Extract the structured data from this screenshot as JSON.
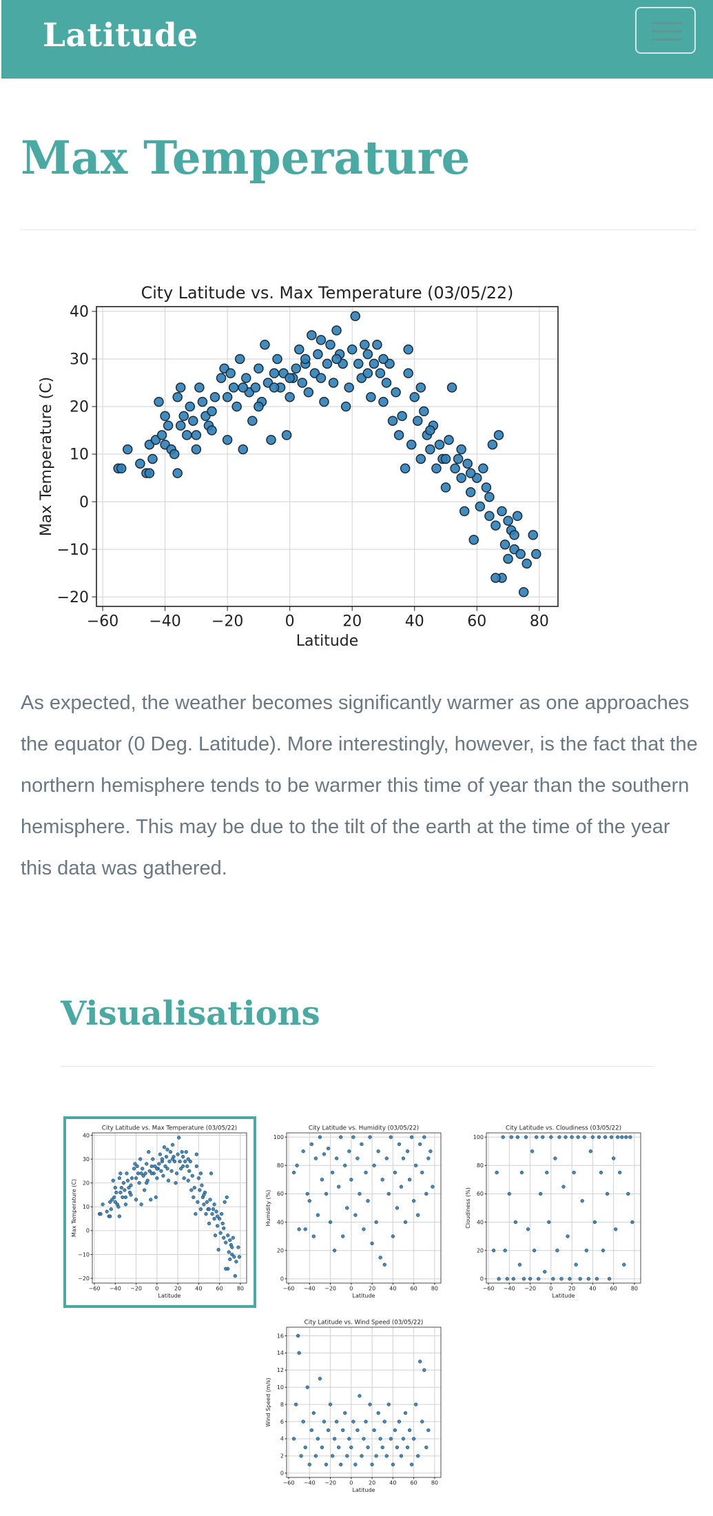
{
  "nav": {
    "brand": "Latitude",
    "menu_icon": "hamburger-icon"
  },
  "page": {
    "title": "Max Temperature",
    "description": "As expected, the weather becomes significantly warmer as one approaches the equator (0 Deg. Latitude). More interestingly, however, is the fact that the northern hemisphere tends to be warmer this time of year than the southern hemisphere. This may be due to the tilt of the earth at the time of the year this data was gathered."
  },
  "visualisations": {
    "title": "Visualisations"
  },
  "colors": {
    "accent": "#4aa9a3",
    "text_muted": "#6a7882",
    "point": "#2f7fb8"
  },
  "chart_data": [
    {
      "id": "max_temp",
      "type": "scatter",
      "title": "City Latitude vs. Max Temperature (03/05/22)",
      "xlabel": "Latitude",
      "ylabel": "Max Temperature (C)",
      "xlim": [
        -62,
        86
      ],
      "ylim": [
        -22,
        41
      ],
      "xticks": [
        -60,
        -40,
        -20,
        0,
        20,
        40,
        60,
        80
      ],
      "yticks": [
        -20,
        -10,
        0,
        10,
        20,
        30,
        40
      ],
      "grid": true,
      "points": [
        [
          -55,
          7
        ],
        [
          -54,
          7
        ],
        [
          -52,
          11
        ],
        [
          -46,
          6
        ],
        [
          -45,
          6
        ],
        [
          -45,
          12
        ],
        [
          -44,
          9
        ],
        [
          -43,
          13
        ],
        [
          -42,
          21
        ],
        [
          -41,
          14
        ],
        [
          -40,
          12
        ],
        [
          -39,
          16
        ],
        [
          -38,
          11
        ],
        [
          -37,
          10
        ],
        [
          -36,
          6
        ],
        [
          -36,
          22
        ],
        [
          -35,
          24
        ],
        [
          -34,
          18
        ],
        [
          -33,
          14
        ],
        [
          -32,
          20
        ],
        [
          -31,
          17
        ],
        [
          -30,
          14
        ],
        [
          -29,
          24
        ],
        [
          -28,
          21
        ],
        [
          -27,
          18
        ],
        [
          -26,
          16
        ],
        [
          -25,
          19
        ],
        [
          -24,
          22
        ],
        [
          -22,
          26
        ],
        [
          -21,
          28
        ],
        [
          -20,
          13
        ],
        [
          -20,
          22
        ],
        [
          -19,
          27
        ],
        [
          -18,
          24
        ],
        [
          -17,
          20
        ],
        [
          -16,
          30
        ],
        [
          -15,
          11
        ],
        [
          -14,
          26
        ],
        [
          -13,
          23
        ],
        [
          -12,
          17
        ],
        [
          -11,
          24
        ],
        [
          -10,
          28
        ],
        [
          -9,
          21
        ],
        [
          -8,
          33
        ],
        [
          -7,
          25
        ],
        [
          -6,
          13
        ],
        [
          -5,
          27
        ],
        [
          -4,
          30
        ],
        [
          -3,
          24
        ],
        [
          -2,
          27
        ],
        [
          -1,
          14
        ],
        [
          0,
          22
        ],
        [
          1,
          26
        ],
        [
          2,
          28
        ],
        [
          3,
          32
        ],
        [
          4,
          25
        ],
        [
          5,
          29
        ],
        [
          6,
          23
        ],
        [
          7,
          35
        ],
        [
          8,
          27
        ],
        [
          9,
          31
        ],
        [
          10,
          26
        ],
        [
          11,
          21
        ],
        [
          12,
          29
        ],
        [
          13,
          33
        ],
        [
          14,
          25
        ],
        [
          15,
          36
        ],
        [
          16,
          31
        ],
        [
          17,
          29
        ],
        [
          18,
          20
        ],
        [
          19,
          24
        ],
        [
          20,
          32
        ],
        [
          21,
          39
        ],
        [
          22,
          29
        ],
        [
          23,
          26
        ],
        [
          24,
          33
        ],
        [
          25,
          31
        ],
        [
          26,
          22
        ],
        [
          27,
          29
        ],
        [
          28,
          33
        ],
        [
          29,
          27
        ],
        [
          30,
          21
        ],
        [
          31,
          25
        ],
        [
          32,
          29
        ],
        [
          33,
          17
        ],
        [
          34,
          23
        ],
        [
          35,
          14
        ],
        [
          36,
          18
        ],
        [
          37,
          7
        ],
        [
          38,
          27
        ],
        [
          39,
          12
        ],
        [
          40,
          22
        ],
        [
          41,
          17
        ],
        [
          42,
          9
        ],
        [
          43,
          19
        ],
        [
          44,
          14
        ],
        [
          45,
          11
        ],
        [
          46,
          16
        ],
        [
          47,
          7
        ],
        [
          48,
          12
        ],
        [
          49,
          9
        ],
        [
          50,
          3
        ],
        [
          51,
          13
        ],
        [
          52,
          24
        ],
        [
          53,
          7
        ],
        [
          54,
          9
        ],
        [
          55,
          5
        ],
        [
          56,
          -2
        ],
        [
          57,
          8
        ],
        [
          58,
          2
        ],
        [
          59,
          -8
        ],
        [
          60,
          5
        ],
        [
          61,
          -1
        ],
        [
          62,
          7
        ],
        [
          63,
          3
        ],
        [
          64,
          -3
        ],
        [
          65,
          12
        ],
        [
          66,
          -5
        ],
        [
          67,
          14
        ],
        [
          68,
          -2
        ],
        [
          69,
          -9
        ],
        [
          70,
          -4
        ],
        [
          71,
          -6
        ],
        [
          72,
          -10
        ],
        [
          73,
          -3
        ],
        [
          74,
          -11
        ],
        [
          75,
          -19
        ],
        [
          76,
          -13
        ],
        [
          78,
          -7
        ],
        [
          79,
          -11
        ],
        [
          68,
          -16
        ],
        [
          66,
          -16
        ],
        [
          70,
          -12
        ],
        [
          72,
          -7
        ],
        [
          64,
          1
        ],
        [
          58,
          6
        ],
        [
          55,
          11
        ],
        [
          50,
          9
        ],
        [
          45,
          15
        ],
        [
          42,
          24
        ],
        [
          38,
          32
        ],
        [
          30,
          30
        ],
        [
          25,
          27
        ],
        [
          15,
          30
        ],
        [
          10,
          34
        ],
        [
          5,
          30
        ],
        [
          0,
          26
        ],
        [
          -5,
          24
        ],
        [
          -10,
          20
        ],
        [
          -15,
          24
        ],
        [
          -25,
          15
        ],
        [
          -30,
          11
        ],
        [
          -35,
          16
        ],
        [
          -40,
          18
        ],
        [
          -48,
          8
        ]
      ]
    },
    {
      "id": "humidity",
      "type": "scatter",
      "title": "City Latitude vs. Humidity (03/05/22)",
      "xlabel": "Latitude",
      "ylabel": "Humidity (%)",
      "xlim": [
        -62,
        86
      ],
      "ylim": [
        -3,
        103
      ],
      "xticks": [
        -60,
        -40,
        -20,
        0,
        20,
        40,
        60,
        80
      ],
      "yticks": [
        0,
        20,
        40,
        60,
        80,
        100
      ],
      "grid": true,
      "points": [
        [
          -55,
          75
        ],
        [
          -52,
          80
        ],
        [
          -50,
          35
        ],
        [
          -46,
          90
        ],
        [
          -44,
          35
        ],
        [
          -42,
          60
        ],
        [
          -40,
          55
        ],
        [
          -38,
          95
        ],
        [
          -36,
          30
        ],
        [
          -34,
          85
        ],
        [
          -32,
          45
        ],
        [
          -30,
          100
        ],
        [
          -28,
          70
        ],
        [
          -26,
          88
        ],
        [
          -24,
          60
        ],
        [
          -22,
          92
        ],
        [
          -20,
          40
        ],
        [
          -18,
          75
        ],
        [
          -16,
          20
        ],
        [
          -14,
          85
        ],
        [
          -12,
          65
        ],
        [
          -10,
          100
        ],
        [
          -8,
          30
        ],
        [
          -6,
          80
        ],
        [
          -4,
          50
        ],
        [
          -2,
          90
        ],
        [
          0,
          70
        ],
        [
          2,
          100
        ],
        [
          4,
          45
        ],
        [
          6,
          85
        ],
        [
          8,
          60
        ],
        [
          10,
          95
        ],
        [
          12,
          35
        ],
        [
          14,
          75
        ],
        [
          16,
          55
        ],
        [
          18,
          100
        ],
        [
          20,
          25
        ],
        [
          22,
          80
        ],
        [
          24,
          40
        ],
        [
          26,
          90
        ],
        [
          28,
          15
        ],
        [
          30,
          70
        ],
        [
          32,
          10
        ],
        [
          34,
          85
        ],
        [
          36,
          60
        ],
        [
          38,
          100
        ],
        [
          40,
          30
        ],
        [
          42,
          75
        ],
        [
          44,
          50
        ],
        [
          46,
          95
        ],
        [
          48,
          65
        ],
        [
          50,
          85
        ],
        [
          52,
          40
        ],
        [
          54,
          90
        ],
        [
          56,
          70
        ],
        [
          58,
          100
        ],
        [
          60,
          55
        ],
        [
          62,
          80
        ],
        [
          64,
          45
        ],
        [
          66,
          95
        ],
        [
          68,
          75
        ],
        [
          70,
          100
        ],
        [
          72,
          60
        ],
        [
          74,
          85
        ],
        [
          76,
          90
        ],
        [
          78,
          65
        ]
      ]
    },
    {
      "id": "cloudiness",
      "type": "scatter",
      "title": "City Latitude vs. Cloudiness (03/05/22)",
      "xlabel": "Latitude",
      "ylabel": "Cloudiness (%)",
      "xlim": [
        -62,
        86
      ],
      "ylim": [
        -3,
        103
      ],
      "xticks": [
        -60,
        -40,
        -20,
        0,
        20,
        40,
        60,
        80
      ],
      "yticks": [
        0,
        20,
        40,
        60,
        80,
        100
      ],
      "grid": true,
      "points": [
        [
          -55,
          20
        ],
        [
          -52,
          75
        ],
        [
          -50,
          0
        ],
        [
          -46,
          100
        ],
        [
          -44,
          20
        ],
        [
          -42,
          0
        ],
        [
          -40,
          60
        ],
        [
          -38,
          100
        ],
        [
          -36,
          0
        ],
        [
          -34,
          40
        ],
        [
          -32,
          100
        ],
        [
          -30,
          10
        ],
        [
          -28,
          75
        ],
        [
          -26,
          0
        ],
        [
          -24,
          100
        ],
        [
          -22,
          35
        ],
        [
          -20,
          0
        ],
        [
          -18,
          90
        ],
        [
          -16,
          20
        ],
        [
          -14,
          100
        ],
        [
          -12,
          0
        ],
        [
          -10,
          60
        ],
        [
          -8,
          100
        ],
        [
          -6,
          5
        ],
        [
          -4,
          75
        ],
        [
          -2,
          40
        ],
        [
          0,
          100
        ],
        [
          2,
          0
        ],
        [
          4,
          85
        ],
        [
          6,
          20
        ],
        [
          8,
          100
        ],
        [
          10,
          0
        ],
        [
          12,
          65
        ],
        [
          14,
          100
        ],
        [
          16,
          30
        ],
        [
          18,
          0
        ],
        [
          20,
          100
        ],
        [
          22,
          75
        ],
        [
          24,
          10
        ],
        [
          26,
          100
        ],
        [
          28,
          0
        ],
        [
          30,
          55
        ],
        [
          32,
          100
        ],
        [
          34,
          20
        ],
        [
          36,
          0
        ],
        [
          38,
          90
        ],
        [
          40,
          100
        ],
        [
          42,
          40
        ],
        [
          44,
          0
        ],
        [
          46,
          100
        ],
        [
          48,
          75
        ],
        [
          50,
          20
        ],
        [
          52,
          100
        ],
        [
          54,
          60
        ],
        [
          56,
          0
        ],
        [
          58,
          100
        ],
        [
          60,
          85
        ],
        [
          62,
          35
        ],
        [
          64,
          100
        ],
        [
          66,
          75
        ],
        [
          68,
          100
        ],
        [
          70,
          10
        ],
        [
          72,
          100
        ],
        [
          74,
          60
        ],
        [
          76,
          100
        ],
        [
          78,
          40
        ]
      ]
    },
    {
      "id": "wind",
      "type": "scatter",
      "title": "City Latitude vs. Wind Speed (03/05/22)",
      "xlabel": "Latitude",
      "ylabel": "Wind Speed (m/s)",
      "xlim": [
        -62,
        86
      ],
      "ylim": [
        -0.5,
        17
      ],
      "xticks": [
        -60,
        -40,
        -20,
        0,
        20,
        40,
        60,
        80
      ],
      "yticks": [
        0,
        2,
        4,
        6,
        8,
        10,
        12,
        14,
        16
      ],
      "grid": true,
      "points": [
        [
          -55,
          4
        ],
        [
          -53,
          8
        ],
        [
          -51,
          16
        ],
        [
          -50,
          14
        ],
        [
          -48,
          2
        ],
        [
          -46,
          6
        ],
        [
          -44,
          3
        ],
        [
          -42,
          10
        ],
        [
          -40,
          1
        ],
        [
          -38,
          5
        ],
        [
          -36,
          7
        ],
        [
          -34,
          2
        ],
        [
          -32,
          4
        ],
        [
          -30,
          11
        ],
        [
          -28,
          3
        ],
        [
          -26,
          6
        ],
        [
          -24,
          1
        ],
        [
          -22,
          5
        ],
        [
          -20,
          8
        ],
        [
          -18,
          2
        ],
        [
          -16,
          4
        ],
        [
          -14,
          6
        ],
        [
          -12,
          3
        ],
        [
          -10,
          1
        ],
        [
          -8,
          5
        ],
        [
          -6,
          7
        ],
        [
          -4,
          2
        ],
        [
          -2,
          4
        ],
        [
          0,
          3
        ],
        [
          2,
          6
        ],
        [
          4,
          1
        ],
        [
          6,
          5
        ],
        [
          8,
          9
        ],
        [
          10,
          2
        ],
        [
          12,
          4
        ],
        [
          14,
          6
        ],
        [
          16,
          3
        ],
        [
          18,
          8
        ],
        [
          20,
          1
        ],
        [
          22,
          5
        ],
        [
          24,
          2
        ],
        [
          26,
          7
        ],
        [
          28,
          4
        ],
        [
          30,
          3
        ],
        [
          32,
          6
        ],
        [
          34,
          2
        ],
        [
          36,
          8
        ],
        [
          38,
          4
        ],
        [
          40,
          1
        ],
        [
          42,
          5
        ],
        [
          44,
          3
        ],
        [
          46,
          6
        ],
        [
          48,
          2
        ],
        [
          50,
          4
        ],
        [
          52,
          7
        ],
        [
          54,
          3
        ],
        [
          56,
          5
        ],
        [
          58,
          1
        ],
        [
          60,
          4
        ],
        [
          62,
          8
        ],
        [
          64,
          2
        ],
        [
          66,
          13
        ],
        [
          68,
          6
        ],
        [
          70,
          12
        ],
        [
          72,
          3
        ],
        [
          74,
          5
        ]
      ]
    }
  ]
}
